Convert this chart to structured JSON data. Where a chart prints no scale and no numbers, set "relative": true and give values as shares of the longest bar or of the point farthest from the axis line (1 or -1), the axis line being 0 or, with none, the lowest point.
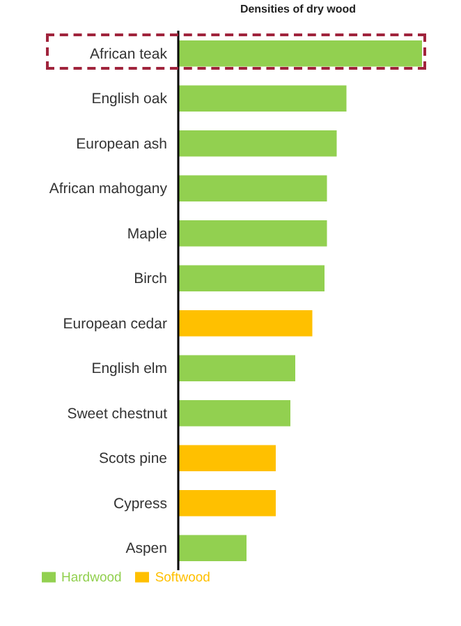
{
  "chart_data": {
    "type": "bar",
    "title": "Densities of dry wood",
    "orientation": "horizontal",
    "relative": true,
    "stacked": true,
    "legend": "bottom",
    "categories": [
      "African teak",
      "English oak",
      "European ash",
      "African mahogany",
      "Maple",
      "Birch",
      "European cedar",
      "English elm",
      "Sweet chestnut",
      "Scots pine",
      "Cypress",
      "Aspen"
    ],
    "series": [
      {
        "name": "Hardwood",
        "color": "#92d050",
        "values": [
          1,
          0.69,
          0.65,
          0.61,
          0.61,
          0.6,
          null,
          0.48,
          0.46,
          null,
          null,
          0.28
        ]
      },
      {
        "name": "Softwood",
        "color": "#ffc000",
        "values": [
          null,
          null,
          null,
          null,
          null,
          null,
          0.55,
          null,
          null,
          0.4,
          0.4,
          null
        ]
      }
    ]
  }
}
